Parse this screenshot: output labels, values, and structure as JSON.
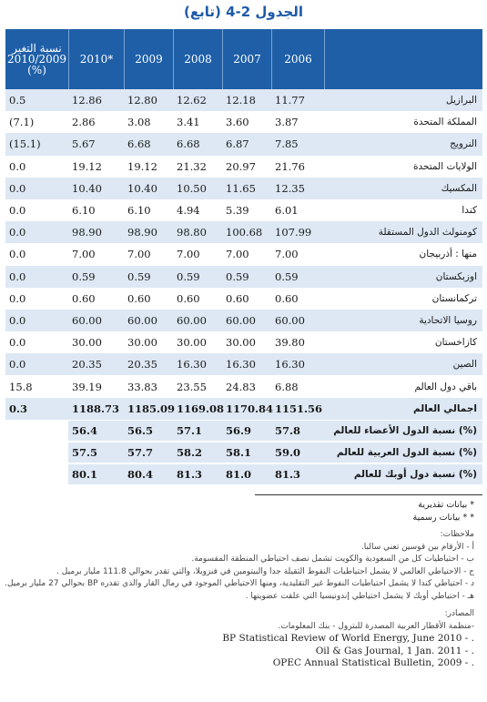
{
  "title": "(تابع) الجدول 2-4",
  "columns": [
    "نسبة التغير 2010/2009 (%)",
    "2010*",
    "2009",
    "2008",
    "2007",
    "2006",
    ""
  ],
  "rows": [
    {
      "label": "البرازيل",
      "values": [
        "0.5",
        "12.86",
        "12.80",
        "12.62",
        "12.18",
        "11.77"
      ]
    },
    {
      "label": "المملكة المتحدة",
      "values": [
        "(7.1)",
        "2.86",
        "3.08",
        "3.41",
        "3.60",
        "3.87"
      ]
    },
    {
      "label": "النرويج",
      "values": [
        "(15.1)",
        "5.67",
        "6.68",
        "6.68",
        "6.87",
        "7.85"
      ]
    },
    {
      "label": "الولايات المتحدة",
      "values": [
        "0.0",
        "19.12",
        "19.12",
        "21.32",
        "20.97",
        "21.76"
      ]
    },
    {
      "label": "المكسيك",
      "values": [
        "0.0",
        "10.40",
        "10.40",
        "10.50",
        "11.65",
        "12.35"
      ]
    },
    {
      "label": "كندا",
      "values": [
        "0.0",
        "6.10",
        "6.10",
        "4.94",
        "5.39",
        "6.01"
      ]
    },
    {
      "label": "كومنولث الدول المستقلة",
      "values": [
        "0.0",
        "98.90",
        "98.90",
        "98.80",
        "100.68",
        "107.99"
      ]
    },
    {
      "label": "منها : أذربيجان",
      "values": [
        "0.0",
        "7.00",
        "7.00",
        "7.00",
        "7.00",
        "7.00"
      ]
    },
    {
      "label": "اوزبكستان",
      "values": [
        "0.0",
        "0.59",
        "0.59",
        "0.59",
        "0.59",
        "0.59"
      ]
    },
    {
      "label": "تركمانستان",
      "values": [
        "0.0",
        "0.60",
        "0.60",
        "0.60",
        "0.60",
        "0.60"
      ]
    },
    {
      "label": "روسيا الاتحادية",
      "values": [
        "0.0",
        "60.00",
        "60.00",
        "60.00",
        "60.00",
        "60.00"
      ]
    },
    {
      "label": "كازاخستان",
      "values": [
        "0.0",
        "30.00",
        "30.00",
        "30.00",
        "30.00",
        "39.80"
      ]
    },
    {
      "label": "الصين",
      "values": [
        "0.0",
        "20.35",
        "20.35",
        "16.30",
        "16.30",
        "16.30"
      ]
    },
    {
      "label": "باقي دول العالم",
      "values": [
        "15.8",
        "39.19",
        "33.83",
        "23.55",
        "24.83",
        "6.88"
      ]
    }
  ],
  "total": {
    "label": "اجمالي العالم",
    "values": [
      "0.3",
      "1188.73",
      "1185.09",
      "1169.08",
      "1170.84",
      "1151.56"
    ]
  },
  "percent_rows": [
    {
      "label": "نسبة الدول الأعضاء للعالم (%)",
      "values": [
        "56.4",
        "56.5",
        "57.1",
        "56.9",
        "57.8"
      ]
    },
    {
      "label": "نسبة الدول العربية للعالم (%)",
      "values": [
        "57.5",
        "57.7",
        "58.2",
        "58.1",
        "59.0"
      ]
    },
    {
      "label": "نسبة دول أوبك للعالم (%)",
      "values": [
        "80.1",
        "80.4",
        "81.3",
        "81.0",
        "81.3"
      ]
    }
  ],
  "footnotes": {
    "estimated": "* بيانات تقديرية",
    "official": "* * بيانات رسمية",
    "notes_title": "ملاحظات:",
    "notes": [
      "أ - الأرقام بين قوسين تعني سالبا.",
      "ب - احتياطيات كل من السعودية والكويت تشمل نصف احتياطي المنطقة المقسومة.",
      "ج - الاحتياطي العالمي لا يشمل احتياطيات النفوط الثقيلة جدا والبيتومين في فنزويلا، والتي تقدر بحوالي 111.8 مليار برميل .",
      "د - احتياطي كندا لا يشمل احتياطيات النفوط غير التقليدية، ومنها الاحتياطي الموجود في رمال القار والذي تقدره BP بحوالي 27 مليار برميل.",
      "هـ - احتياطي أوبك لا يشمل احتياطي إندونيسيا التي علقت عضويتها ."
    ],
    "sources_title": "المصادر:",
    "sources": [
      "-منظمة الأقطار العربية المصدرة للبترول - بنك المعلومات.",
      "BP Statistical Review of World Energy, June 2010 - .",
      "Oil & Gas Journal, 1 Jan. 2011 - .",
      "OPEC Annual Statistical Bulletin, 2009 - ."
    ]
  }
}
